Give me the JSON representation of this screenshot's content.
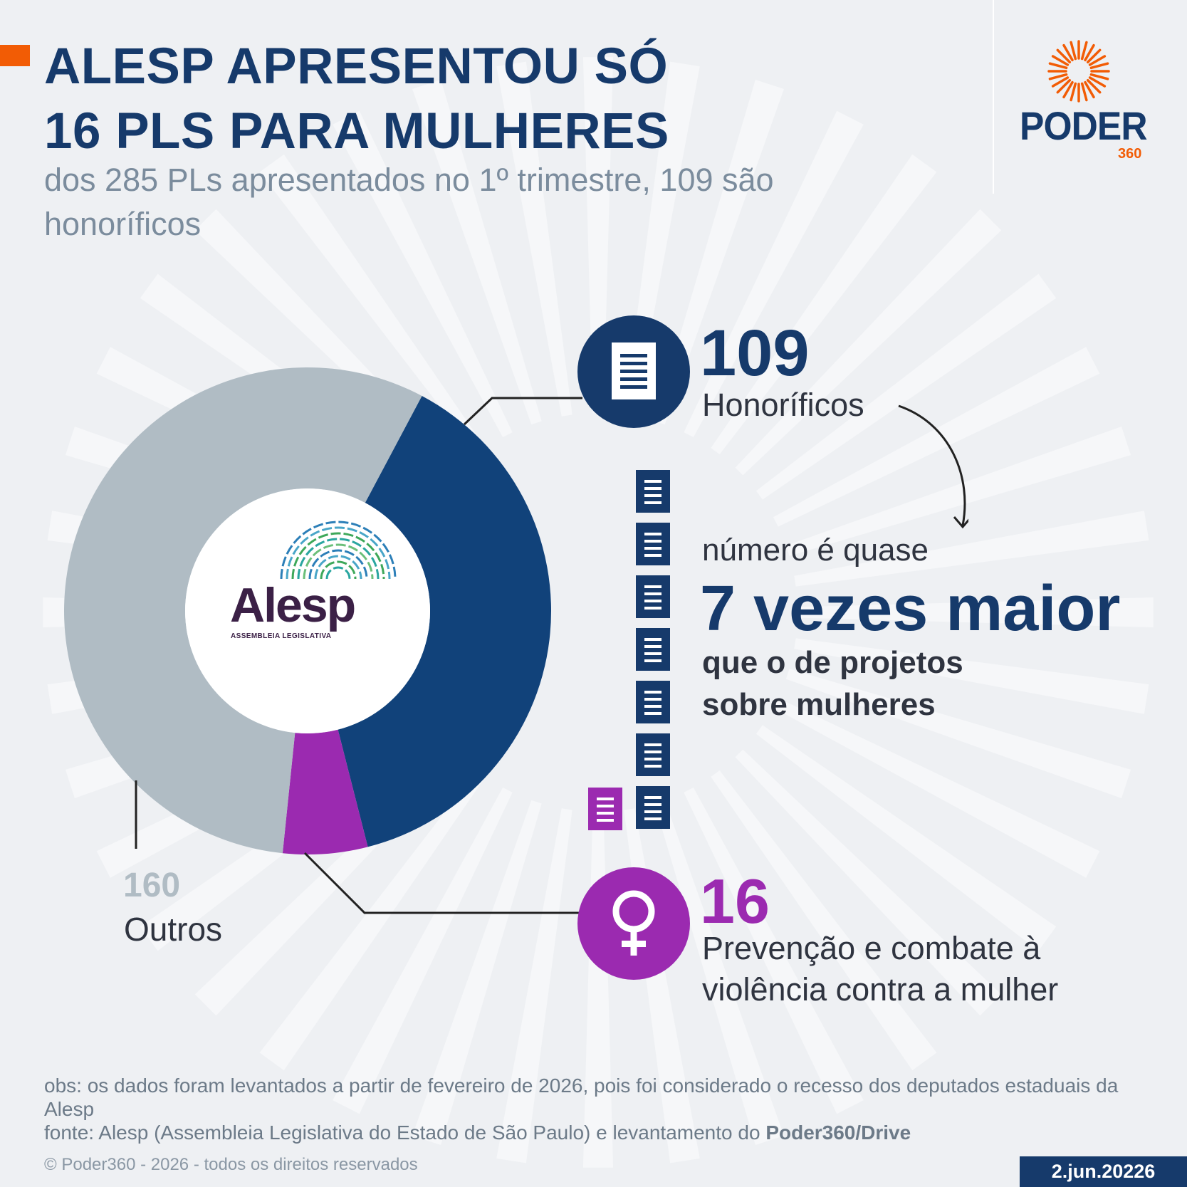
{
  "header": {
    "title_line1": "ALESP APRESENTOU SÓ",
    "title_line2": "16 PLS PARA MULHERES",
    "subtitle": "dos 285 PLs apresentados no 1º trimestre, 109 são honoríficos"
  },
  "brand": {
    "name": "PODER",
    "number": "360",
    "color": "#f25c05"
  },
  "center_logo": {
    "word": "Alesp",
    "subtitle": "ASSEMBLEIA LEGISLATIVA"
  },
  "chart_data": {
    "type": "pie",
    "categories": [
      "Honoríficos",
      "Prevenção e combate à violência contra a mulher",
      "Outros"
    ],
    "values": [
      109,
      16,
      160
    ],
    "colors": [
      "#11427a",
      "#9b2ab0",
      "#b0bcc4"
    ],
    "total": 285
  },
  "callouts": {
    "honorificos": {
      "value": "109",
      "label": "Honoríficos"
    },
    "mulheres": {
      "value": "16",
      "label_line1": "Prevenção e combate à",
      "label_line2": "violência contra a mulher"
    },
    "outros": {
      "value": "160",
      "label": "Outros"
    }
  },
  "comparison": {
    "intro": "número é quase",
    "headline": "7 vezes maior",
    "tail_line1": "que o de projetos",
    "tail_line2": "sobre mulheres"
  },
  "footer": {
    "obs": "obs: os dados foram levantados a partir de fevereiro de 2026, pois foi considerado o recesso dos deputados estaduais da Alesp",
    "source_prefix": "fonte: Alesp (Assembleia Legislativa do Estado de São Paulo) e levantamento do ",
    "source_bold": "Poder360/Drive",
    "copyright": "© Poder360 - 2026 - todos os direitos reservados",
    "date": "2.jun.20226"
  }
}
